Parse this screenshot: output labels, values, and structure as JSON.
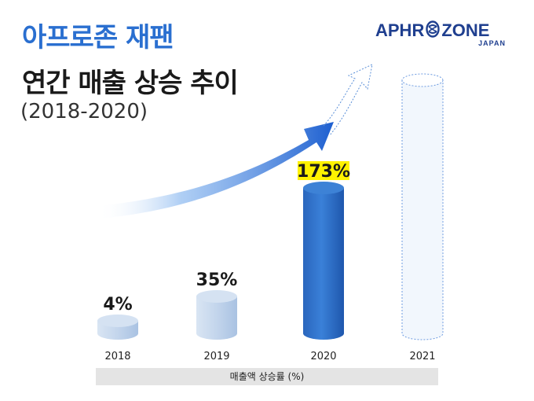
{
  "header": {
    "title_line1": "아프로존 재팬",
    "title_line2": "연간 매출 상승 추이",
    "subtitle": "(2018-2020)"
  },
  "logo": {
    "left_text": "APHR",
    "right_text": "ZONE",
    "sub_text": "JAPAN",
    "ring_icon": "double-ring-icon"
  },
  "colors": {
    "brand_blue": "#2a6fd0",
    "logo_navy": "#1f3f8f",
    "bar_light": "#c7d9ee",
    "bar_dark": "#2f70c6",
    "highlight": "#fff200"
  },
  "chart_data": {
    "type": "bar",
    "title": "",
    "xlabel": "매출액 상승률 (%)",
    "ylabel": "",
    "categories": [
      "2018",
      "2019",
      "2020",
      "2021"
    ],
    "series": [
      {
        "values": [
          4,
          35,
          173,
          null
        ]
      }
    ],
    "data_labels": [
      "4%",
      "35%",
      "173%",
      ""
    ],
    "highlight_category": "2020",
    "projected_category": "2021",
    "trend_arrow": true,
    "grid": false
  }
}
